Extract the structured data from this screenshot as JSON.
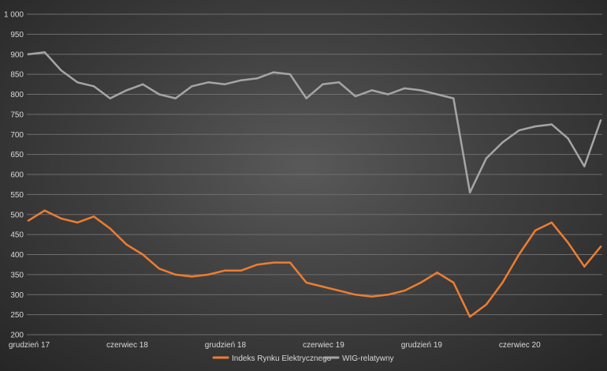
{
  "colors": {
    "iru": "#ed7d31",
    "wig": "#a5a5a5",
    "grid": "#6e6e6e",
    "text": "#d9d9d9"
  },
  "chart_data": {
    "type": "line",
    "title": "",
    "xlabel": "",
    "ylabel": "",
    "ylim": [
      200,
      1000
    ],
    "yticks": [
      "200",
      "250",
      "300",
      "350",
      "400",
      "450",
      "500",
      "550",
      "600",
      "650",
      "700",
      "750",
      "800",
      "850",
      "900",
      "950",
      "1 000"
    ],
    "x_tick_labels": [
      "grudzień 17",
      "czerwiec 18",
      "grudzień 18",
      "czerwiec 19",
      "grudzień 19",
      "czerwiec 20"
    ],
    "grid": "horizontal",
    "legend_position": "bottom",
    "x": [
      "2017-12",
      "2018-01",
      "2018-02",
      "2018-03",
      "2018-04",
      "2018-05",
      "2018-06",
      "2018-07",
      "2018-08",
      "2018-09",
      "2018-10",
      "2018-11",
      "2018-12",
      "2019-01",
      "2019-02",
      "2019-03",
      "2019-04",
      "2019-05",
      "2019-06",
      "2019-07",
      "2019-08",
      "2019-09",
      "2019-10",
      "2019-11",
      "2019-12",
      "2020-01",
      "2020-02",
      "2020-03",
      "2020-04",
      "2020-05",
      "2020-06",
      "2020-07",
      "2020-08",
      "2020-09",
      "2020-10",
      "2020-11"
    ],
    "series": [
      {
        "name": "Indeks Rynku Elektrycznego",
        "color": "#ed7d31",
        "values": [
          485,
          510,
          490,
          480,
          495,
          465,
          425,
          400,
          365,
          350,
          345,
          350,
          360,
          360,
          375,
          380,
          380,
          330,
          320,
          310,
          300,
          295,
          300,
          310,
          330,
          355,
          330,
          245,
          275,
          330,
          400,
          460,
          480,
          430,
          370,
          420
        ]
      },
      {
        "name": "WIG-relatywny",
        "color": "#a5a5a5",
        "values": [
          900,
          905,
          860,
          830,
          820,
          790,
          810,
          825,
          800,
          790,
          820,
          830,
          825,
          835,
          840,
          855,
          850,
          790,
          825,
          830,
          795,
          810,
          800,
          815,
          810,
          800,
          790,
          555,
          640,
          680,
          710,
          720,
          725,
          690,
          620,
          735
        ]
      }
    ]
  }
}
